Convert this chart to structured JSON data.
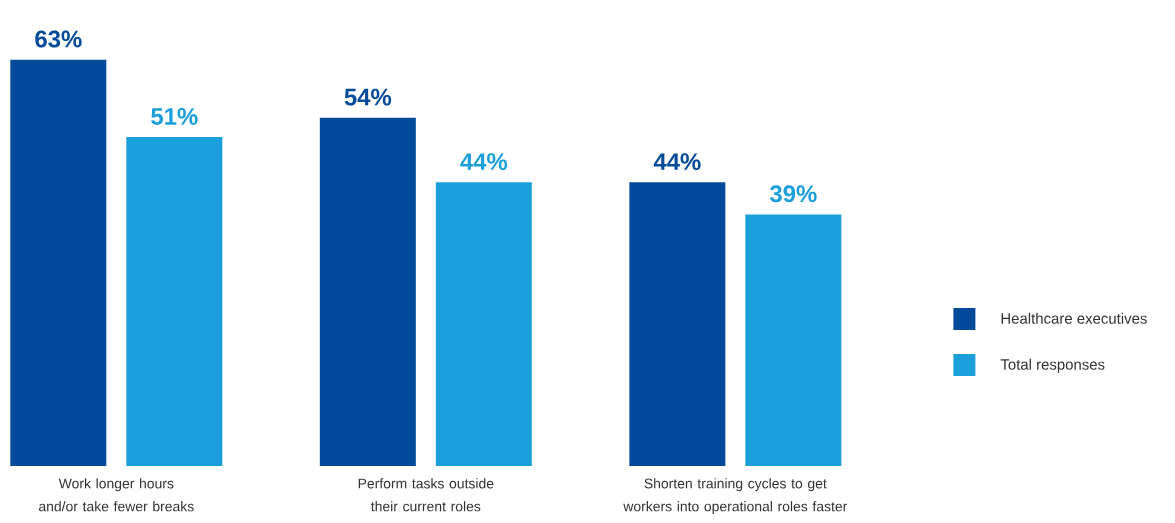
{
  "chart_data": {
    "type": "bar",
    "categories": [
      "Work longer hours and/or take fewer breaks",
      "Perform tasks outside their current roles",
      "Shorten training cycles to get workers into operational roles faster"
    ],
    "series": [
      {
        "name": "Healthcare executives",
        "color": "#034b9a",
        "values": [
          63,
          54,
          44
        ],
        "value_labels": [
          "63%",
          "54%",
          "44%"
        ]
      },
      {
        "name": "Total responses",
        "color": "#1a9fdb",
        "values": [
          51,
          44,
          39
        ],
        "value_labels": [
          "51%",
          "44%",
          "39%"
        ]
      }
    ],
    "legend": "right"
  }
}
